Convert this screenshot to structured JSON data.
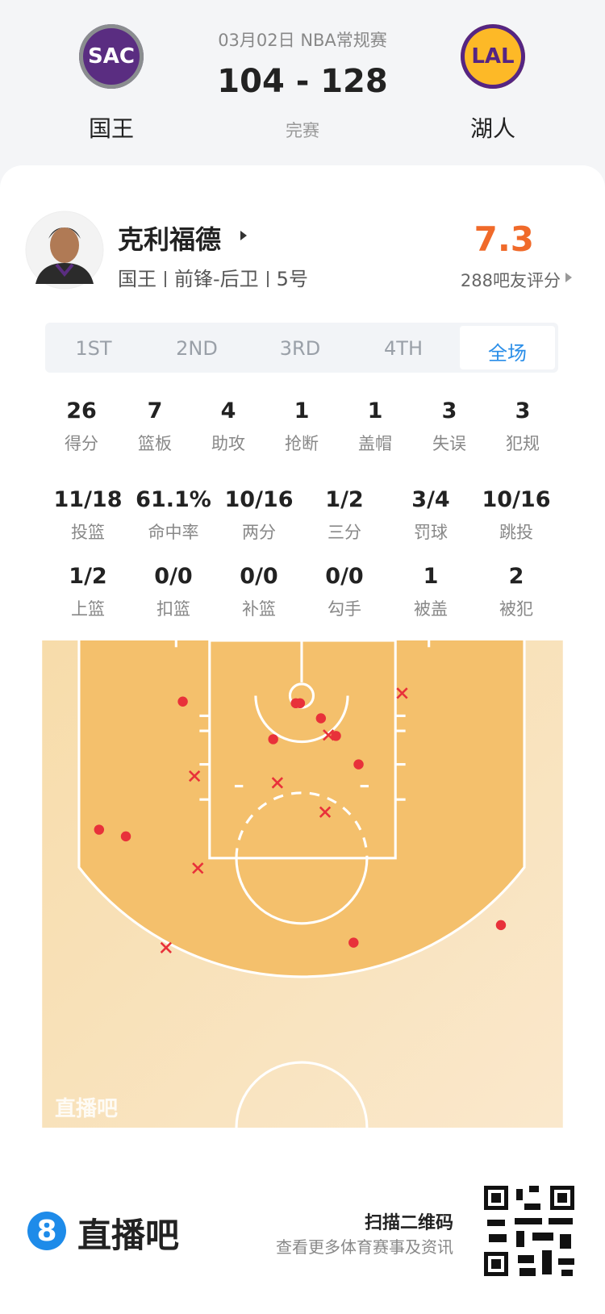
{
  "header": {
    "date": "03月02日 NBA常规赛",
    "score": "104 - 128",
    "status": "完赛",
    "home": {
      "logo": "SAC",
      "name": "国王"
    },
    "away": {
      "logo": "LAL",
      "name": "湖人"
    }
  },
  "player": {
    "name": "克利福德",
    "team": "国王",
    "position": "前锋-后卫",
    "number": "5号",
    "rating": "7.3",
    "rating_label": "288吧友评分"
  },
  "tabs": {
    "items": [
      "1ST",
      "2ND",
      "3RD",
      "4TH",
      "全场"
    ],
    "active": 4
  },
  "stats": [
    [
      {
        "value": "26",
        "label": "得分"
      },
      {
        "value": "7",
        "label": "篮板"
      },
      {
        "value": "4",
        "label": "助攻"
      },
      {
        "value": "1",
        "label": "抢断"
      },
      {
        "value": "1",
        "label": "盖帽"
      },
      {
        "value": "3",
        "label": "失误"
      },
      {
        "value": "3",
        "label": "犯规"
      }
    ],
    [
      {
        "value": "11/18",
        "label": "投篮"
      },
      {
        "value": "61.1%",
        "label": "命中率"
      },
      {
        "value": "10/16",
        "label": "两分"
      },
      {
        "value": "1/2",
        "label": "三分"
      },
      {
        "value": "3/4",
        "label": "罚球"
      },
      {
        "value": "10/16",
        "label": "跳投"
      }
    ],
    [
      {
        "value": "1/2",
        "label": "上篮"
      },
      {
        "value": "0/0",
        "label": "扣篮"
      },
      {
        "value": "0/0",
        "label": "补篮"
      },
      {
        "value": "0/0",
        "label": "勾手"
      },
      {
        "value": "1",
        "label": "被盖"
      },
      {
        "value": "2",
        "label": "被犯"
      }
    ]
  ],
  "court": {
    "watermark": "直播吧"
  },
  "footer": {
    "logo": "8",
    "brand": "直播吧",
    "scan": "扫描二维码",
    "subtitle": "查看更多体育赛事及资讯"
  }
}
